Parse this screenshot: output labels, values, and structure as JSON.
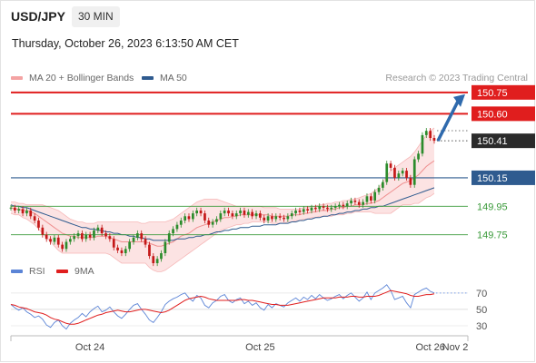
{
  "header": {
    "symbol": "USD/JPY",
    "timeframe": "30 MIN",
    "timestamp": "Thursday, October 26, 2023 6:13:50 AM CET",
    "credit": "Research © 2023 Trading Central"
  },
  "legend": [
    {
      "label": "MA 20 + Bollinger Bands",
      "color": "#f4a3a3"
    },
    {
      "label": "MA 50",
      "color": "#2f5b8f"
    }
  ],
  "rsi_legend": [
    {
      "label": "RSI",
      "color": "#5b84d6"
    },
    {
      "label": "9MA",
      "color": "#e01e1e"
    }
  ],
  "colors": {
    "up": "#2c8c2c",
    "down": "#c41818",
    "resistance": "#e01e1e",
    "support_major": "#2f5b8f",
    "support": "#3a9a3a",
    "arrow": "#2f6aad",
    "last": "#2b2b2b",
    "band_fill": "#fbd9d9"
  },
  "chart_data": [
    {
      "type": "candlestick",
      "x_ticks": [
        "Oct 24",
        "Oct 25",
        "Oct 26",
        "Nov 2"
      ],
      "ylim": [
        149.55,
        150.8
      ],
      "last_price": 150.41,
      "levels": [
        {
          "value": 150.75,
          "label": "150.75",
          "kind": "resistance",
          "style": "badge"
        },
        {
          "value": 150.6,
          "label": "150.60",
          "kind": "resistance",
          "style": "badge"
        },
        {
          "value": 150.15,
          "label": "150.15",
          "kind": "support_major",
          "style": "badge"
        },
        {
          "value": 149.95,
          "label": "149.95",
          "kind": "support",
          "style": "text"
        },
        {
          "value": 149.75,
          "label": "149.75",
          "kind": "support",
          "style": "text"
        }
      ],
      "close": [
        149.94,
        149.92,
        149.93,
        149.9,
        149.92,
        149.88,
        149.85,
        149.8,
        149.75,
        149.72,
        149.7,
        149.73,
        149.68,
        149.65,
        149.7,
        149.72,
        149.74,
        149.76,
        149.72,
        149.75,
        149.73,
        149.78,
        149.8,
        149.76,
        149.74,
        149.72,
        149.66,
        149.64,
        149.62,
        149.65,
        149.7,
        149.73,
        149.76,
        149.72,
        149.68,
        149.6,
        149.55,
        149.58,
        149.62,
        149.7,
        149.76,
        149.79,
        149.82,
        149.85,
        149.88,
        149.86,
        149.9,
        149.92,
        149.9,
        149.85,
        149.82,
        149.84,
        149.86,
        149.9,
        149.92,
        149.9,
        149.88,
        149.9,
        149.92,
        149.89,
        149.91,
        149.88,
        149.9,
        149.87,
        149.85,
        149.88,
        149.86,
        149.88,
        149.87,
        149.86,
        149.88,
        149.9,
        149.92,
        149.91,
        149.93,
        149.92,
        149.94,
        149.93,
        149.95,
        149.94,
        149.93,
        149.94,
        149.95,
        149.96,
        149.95,
        149.97,
        149.99,
        149.98,
        149.96,
        149.98,
        150.02,
        149.99,
        150.05,
        150.08,
        150.12,
        150.25,
        150.22,
        150.15,
        150.18,
        150.2,
        150.15,
        150.1,
        150.28,
        150.32,
        150.45,
        150.48,
        150.43,
        150.41
      ],
      "ma20": [
        149.94,
        149.93,
        149.93,
        149.92,
        149.92,
        149.91,
        149.9,
        149.88,
        149.86,
        149.84,
        149.82,
        149.8,
        149.78,
        149.76,
        149.75,
        149.74,
        149.74,
        149.73,
        149.73,
        149.73,
        149.73,
        149.73,
        149.74,
        149.74,
        149.74,
        149.73,
        149.72,
        149.71,
        149.7,
        149.7,
        149.7,
        149.7,
        149.7,
        149.7,
        149.7,
        149.69,
        149.68,
        149.67,
        149.67,
        149.68,
        149.69,
        149.7,
        149.72,
        149.74,
        149.75,
        149.76,
        149.78,
        149.8,
        149.81,
        149.82,
        149.83,
        149.84,
        149.85,
        149.86,
        149.87,
        149.87,
        149.88,
        149.88,
        149.89,
        149.89,
        149.89,
        149.89,
        149.89,
        149.89,
        149.89,
        149.89,
        149.88,
        149.88,
        149.88,
        149.88,
        149.88,
        149.89,
        149.89,
        149.89,
        149.9,
        149.9,
        149.91,
        149.91,
        149.92,
        149.92,
        149.92,
        149.93,
        149.93,
        149.94,
        149.94,
        149.95,
        149.95,
        149.96,
        149.96,
        149.96,
        149.97,
        149.97,
        149.98,
        149.99,
        150.01,
        150.03,
        150.05,
        150.07,
        150.09,
        150.11,
        150.12,
        150.13,
        150.15,
        150.17,
        150.2,
        150.23,
        150.25,
        150.27
      ],
      "bb_upper": [
        149.98,
        149.98,
        149.97,
        149.97,
        149.96,
        149.96,
        149.96,
        149.96,
        149.96,
        149.95,
        149.94,
        149.93,
        149.92,
        149.9,
        149.88,
        149.86,
        149.85,
        149.84,
        149.84,
        149.83,
        149.83,
        149.83,
        149.84,
        149.84,
        149.84,
        149.84,
        149.84,
        149.84,
        149.84,
        149.84,
        149.84,
        149.84,
        149.84,
        149.83,
        149.83,
        149.84,
        149.84,
        149.84,
        149.84,
        149.84,
        149.85,
        149.86,
        149.88,
        149.9,
        149.92,
        149.94,
        149.96,
        149.98,
        149.99,
        150.0,
        150.0,
        150.0,
        150.0,
        149.99,
        149.98,
        149.97,
        149.96,
        149.95,
        149.95,
        149.95,
        149.95,
        149.95,
        149.95,
        149.95,
        149.94,
        149.94,
        149.94,
        149.94,
        149.93,
        149.93,
        149.93,
        149.93,
        149.93,
        149.93,
        149.94,
        149.94,
        149.95,
        149.95,
        149.96,
        149.96,
        149.97,
        149.97,
        149.98,
        149.98,
        149.99,
        149.99,
        150.0,
        150.0,
        150.01,
        150.02,
        150.03,
        150.04,
        150.06,
        150.08,
        150.12,
        150.16,
        150.2,
        150.22,
        150.24,
        150.26,
        150.28,
        150.3,
        150.33,
        150.37,
        150.41,
        150.45,
        150.48,
        150.5
      ],
      "bb_lower": [
        149.9,
        149.89,
        149.89,
        149.87,
        149.86,
        149.84,
        149.82,
        149.79,
        149.76,
        149.73,
        149.7,
        149.67,
        149.64,
        149.62,
        149.62,
        149.62,
        149.62,
        149.62,
        149.62,
        149.62,
        149.62,
        149.62,
        149.62,
        149.62,
        149.62,
        149.61,
        149.59,
        149.57,
        149.55,
        149.55,
        149.55,
        149.55,
        149.55,
        149.55,
        149.55,
        149.52,
        149.5,
        149.49,
        149.49,
        149.5,
        149.52,
        149.54,
        149.56,
        149.58,
        149.6,
        149.62,
        149.64,
        149.66,
        149.68,
        149.7,
        149.72,
        149.74,
        149.76,
        149.78,
        149.79,
        149.8,
        149.81,
        149.82,
        149.82,
        149.83,
        149.83,
        149.84,
        149.84,
        149.84,
        149.84,
        149.84,
        149.83,
        149.83,
        149.83,
        149.83,
        149.84,
        149.84,
        149.85,
        149.85,
        149.86,
        149.86,
        149.87,
        149.87,
        149.88,
        149.88,
        149.88,
        149.88,
        149.89,
        149.89,
        149.89,
        149.9,
        149.9,
        149.91,
        149.91,
        149.91,
        149.91,
        149.91,
        149.9,
        149.9,
        149.9,
        149.9,
        149.9,
        149.92,
        149.94,
        149.96,
        149.96,
        149.96,
        149.97,
        149.97,
        149.99,
        150.01,
        150.02,
        150.04
      ],
      "ma50": [
        149.96,
        149.95,
        149.95,
        149.94,
        149.94,
        149.93,
        149.92,
        149.91,
        149.9,
        149.89,
        149.88,
        149.87,
        149.86,
        149.85,
        149.84,
        149.83,
        149.82,
        149.81,
        149.8,
        149.8,
        149.79,
        149.79,
        149.78,
        149.78,
        149.77,
        149.77,
        149.76,
        149.76,
        149.75,
        149.75,
        149.74,
        149.74,
        149.73,
        149.73,
        149.72,
        149.72,
        149.71,
        149.71,
        149.71,
        149.71,
        149.71,
        149.71,
        149.72,
        149.72,
        149.72,
        149.73,
        149.73,
        149.74,
        149.74,
        149.75,
        149.75,
        149.76,
        149.77,
        149.77,
        149.78,
        149.78,
        149.79,
        149.79,
        149.8,
        149.8,
        149.8,
        149.81,
        149.81,
        149.81,
        149.82,
        149.82,
        149.82,
        149.82,
        149.83,
        149.83,
        149.83,
        149.84,
        149.84,
        149.85,
        149.85,
        149.86,
        149.86,
        149.87,
        149.87,
        149.88,
        149.88,
        149.89,
        149.89,
        149.9,
        149.9,
        149.91,
        149.91,
        149.92,
        149.92,
        149.93,
        149.93,
        149.94,
        149.94,
        149.95,
        149.95,
        149.96,
        149.97,
        149.98,
        149.99,
        150.0,
        150.01,
        150.02,
        150.03,
        150.04,
        150.05,
        150.06,
        150.07,
        150.08
      ],
      "x_tick_index": [
        20,
        63,
        106,
        124
      ]
    },
    {
      "type": "line",
      "title": "RSI",
      "y_ticks": [
        70,
        50,
        30
      ],
      "ylim": [
        20,
        82
      ],
      "rsi": [
        56,
        52,
        49,
        52,
        47,
        44,
        40,
        42,
        38,
        31,
        28,
        34,
        37,
        30,
        26,
        33,
        37,
        40,
        45,
        41,
        47,
        51,
        54,
        47,
        49,
        53,
        47,
        42,
        39,
        44,
        50,
        55,
        57,
        50,
        44,
        37,
        34,
        40,
        47,
        56,
        60,
        63,
        65,
        68,
        70,
        64,
        60,
        67,
        64,
        55,
        52,
        58,
        61,
        66,
        68,
        61,
        58,
        62,
        64,
        57,
        60,
        55,
        58,
        52,
        49,
        56,
        52,
        57,
        55,
        53,
        58,
        61,
        64,
        60,
        65,
        62,
        67,
        63,
        68,
        64,
        61,
        63,
        66,
        68,
        63,
        67,
        70,
        65,
        60,
        64,
        71,
        62,
        70,
        73,
        76,
        80,
        73,
        62,
        64,
        66,
        58,
        52,
        68,
        71,
        74,
        76,
        72,
        70
      ],
      "ma9": [
        56,
        55,
        53,
        52,
        51,
        49,
        47,
        46,
        45,
        43,
        40,
        38,
        37,
        35,
        33,
        32,
        32,
        33,
        35,
        37,
        39,
        41,
        43,
        44,
        46,
        47,
        48,
        49,
        48,
        47,
        47,
        48,
        49,
        50,
        50,
        49,
        48,
        47,
        46,
        47,
        49,
        52,
        55,
        58,
        61,
        63,
        64,
        65,
        66,
        65,
        63,
        62,
        61,
        61,
        61,
        61,
        61,
        61,
        62,
        62,
        61,
        61,
        60,
        59,
        58,
        57,
        56,
        56,
        55,
        55,
        55,
        56,
        57,
        58,
        59,
        60,
        61,
        62,
        63,
        64,
        64,
        64,
        64,
        65,
        65,
        65,
        66,
        66,
        65,
        65,
        66,
        66,
        66,
        67,
        69,
        71,
        73,
        72,
        71,
        70,
        69,
        67,
        66,
        66,
        67,
        68,
        68,
        69
      ]
    }
  ]
}
